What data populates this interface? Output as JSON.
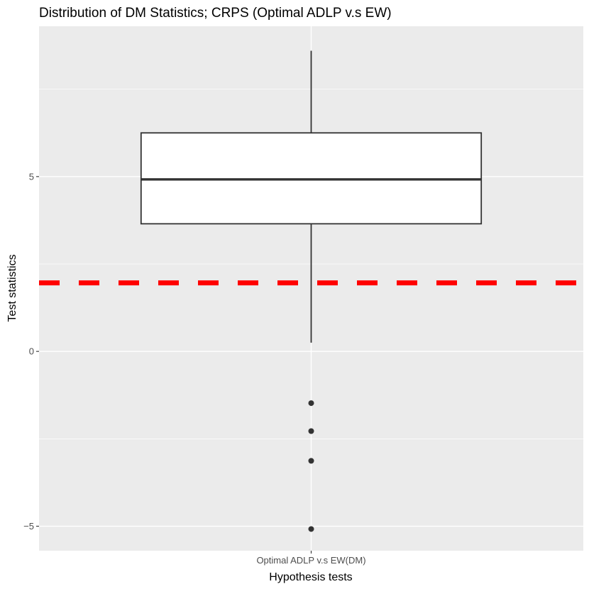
{
  "chart_data": {
    "type": "boxplot",
    "title": "Distribution of DM Statistics; CRPS (Optimal ADLP v.s EW)",
    "xlabel": "Hypothesis tests",
    "ylabel": "Test statistics",
    "categories": [
      "Optimal ADLP v.s EW(DM)"
    ],
    "ylim": [
      -5.7,
      9.3
    ],
    "yticks": [
      -5,
      0,
      5
    ],
    "ytick_labels": [
      "−5",
      "0",
      "5"
    ],
    "boxes": [
      {
        "category": "Optimal ADLP v.s EW(DM)",
        "whisker_low": 0.25,
        "q1": 3.65,
        "median": 4.92,
        "q3": 6.25,
        "whisker_high": 8.6,
        "outliers": [
          -1.48,
          -2.28,
          -3.13,
          -5.08
        ]
      }
    ],
    "reference_line": {
      "y": 1.96,
      "color": "#ff0000",
      "style": "dashed"
    },
    "grid": true,
    "colors": {
      "panel_background": "#ebebeb",
      "grid": "#ffffff",
      "box_fill": "#ffffff",
      "box_line": "#333333",
      "outlier": "#333333"
    }
  }
}
